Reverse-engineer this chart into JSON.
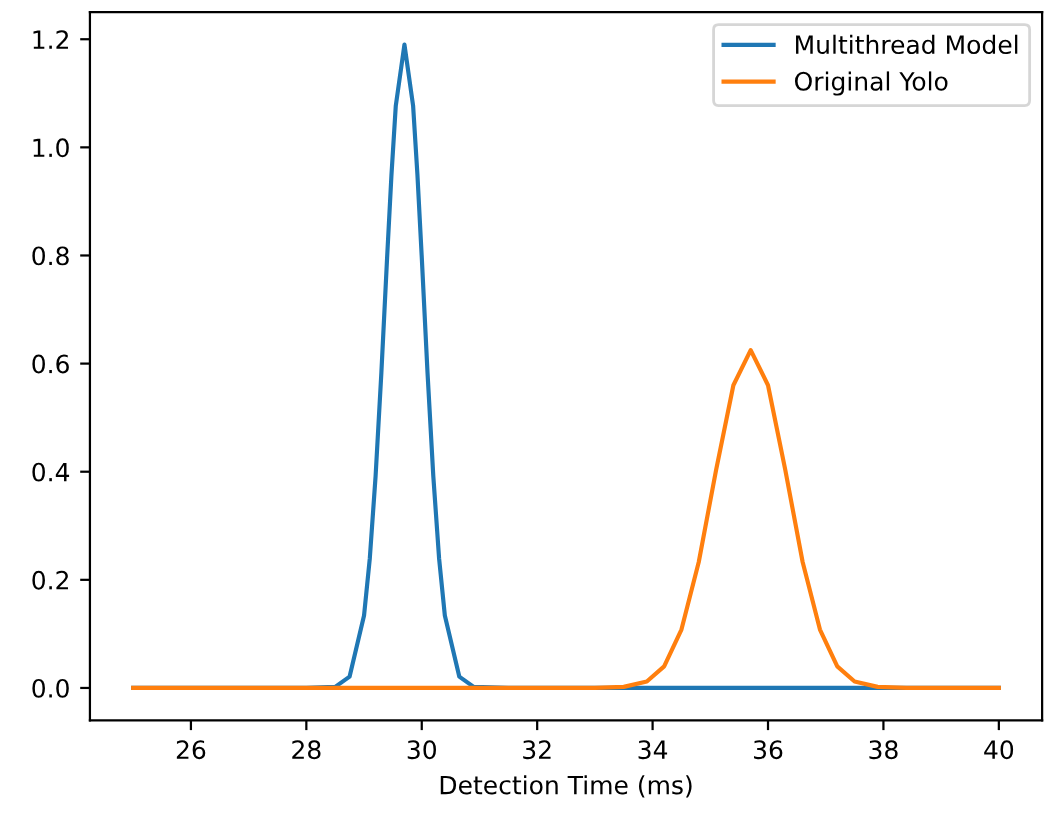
{
  "chart_data": {
    "type": "line",
    "xlabel": "Detection Time (ms)",
    "xlim": [
      24.25,
      40.75
    ],
    "xticks": [
      26,
      28,
      30,
      32,
      34,
      36,
      38,
      40
    ],
    "ylim": [
      -0.06,
      1.25
    ],
    "yticks": [
      {
        "value": 0,
        "label": "0.0"
      },
      {
        "value": 0.2,
        "label": "0.2"
      },
      {
        "value": 0.4,
        "label": "0.4"
      },
      {
        "value": 0.6,
        "label": "0.6"
      },
      {
        "value": 0.8,
        "label": "0.8"
      },
      {
        "value": 1.0,
        "label": "1.0"
      },
      {
        "value": 1.2,
        "label": "1.2"
      }
    ],
    "grid": false,
    "legend": "top right",
    "series": [
      {
        "name": "Multithread Model",
        "color": "#1f77b4",
        "x": [
          25,
          28,
          28.5,
          28.75,
          29,
          29.1,
          29.2,
          29.3,
          29.4,
          29.475,
          29.55,
          29.7,
          29.85,
          29.925,
          30,
          30.1,
          30.2,
          30.3,
          30.4,
          30.65,
          30.9,
          31.5,
          40
        ],
        "values": [
          0,
          0,
          0.002,
          0.021,
          0.134,
          0.24,
          0.392,
          0.583,
          0.797,
          0.949,
          1.077,
          1.19,
          1.077,
          0.949,
          0.797,
          0.583,
          0.392,
          0.24,
          0.134,
          0.021,
          0.002,
          0,
          0
        ]
      },
      {
        "name": "Original Yolo",
        "color": "#ff7f0e",
        "x": [
          25,
          33,
          33.5,
          33.9,
          34.2,
          34.5,
          34.8,
          35.1,
          35.4,
          35.7,
          36.0,
          36.3,
          36.6,
          36.9,
          37.2,
          37.5,
          37.9,
          38.4,
          40
        ],
        "values": [
          0,
          0,
          0.002,
          0.012,
          0.04,
          0.108,
          0.233,
          0.403,
          0.56,
          0.625,
          0.56,
          0.403,
          0.233,
          0.108,
          0.04,
          0.012,
          0.002,
          0,
          0
        ]
      }
    ]
  }
}
